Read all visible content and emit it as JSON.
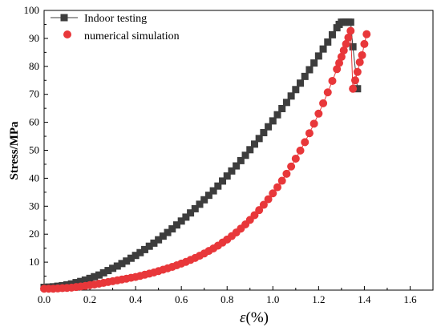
{
  "chart_data": {
    "type": "scatter",
    "xlabel_symbol": "ε",
    "xlabel_unit": "(%)",
    "ylabel": "Stress/MPa",
    "xlim": [
      0.0,
      1.7
    ],
    "ylim": [
      0,
      100
    ],
    "x_ticks": [
      "0.0",
      "0.2",
      "0.4",
      "0.6",
      "0.8",
      "1.0",
      "1.2",
      "1.4",
      "1.6"
    ],
    "y_ticks": [
      "10",
      "20",
      "30",
      "40",
      "50",
      "60",
      "70",
      "80",
      "90",
      "100"
    ],
    "grid": false,
    "legend_position": "top-left",
    "series": [
      {
        "name": "Indoor testing",
        "marker": "square",
        "color": "#3d3d3d",
        "x": [
          0.0,
          0.02,
          0.04,
          0.06,
          0.08,
          0.1,
          0.12,
          0.14,
          0.16,
          0.18,
          0.2,
          0.22,
          0.24,
          0.26,
          0.28,
          0.3,
          0.32,
          0.34,
          0.36,
          0.38,
          0.4,
          0.42,
          0.44,
          0.46,
          0.48,
          0.5,
          0.52,
          0.54,
          0.56,
          0.58,
          0.6,
          0.62,
          0.64,
          0.66,
          0.68,
          0.7,
          0.72,
          0.74,
          0.76,
          0.78,
          0.8,
          0.82,
          0.84,
          0.86,
          0.88,
          0.9,
          0.92,
          0.94,
          0.96,
          0.98,
          1.0,
          1.02,
          1.04,
          1.06,
          1.08,
          1.1,
          1.12,
          1.14,
          1.16,
          1.18,
          1.2,
          1.22,
          1.24,
          1.26,
          1.28,
          1.29,
          1.3,
          1.31,
          1.32,
          1.33,
          1.34,
          1.35,
          1.37
        ],
        "y": [
          1.0,
          1.1,
          1.2,
          1.4,
          1.6,
          1.9,
          2.2,
          2.7,
          3.1,
          3.6,
          4.2,
          4.8,
          5.4,
          6.2,
          7.0,
          7.8,
          8.6,
          9.5,
          10.4,
          11.4,
          12.4,
          13.4,
          14.5,
          15.7,
          16.8,
          18.0,
          19.3,
          20.6,
          21.9,
          23.3,
          24.7,
          26.1,
          27.6,
          29.1,
          30.7,
          32.3,
          33.9,
          35.5,
          37.2,
          39.0,
          40.8,
          42.6,
          44.4,
          46.3,
          48.2,
          50.2,
          52.2,
          54.2,
          56.3,
          58.4,
          60.5,
          62.7,
          64.9,
          67.1,
          69.4,
          71.7,
          74.0,
          76.4,
          78.8,
          81.2,
          83.7,
          86.2,
          88.7,
          91.3,
          93.8,
          95.0,
          95.8,
          95.8,
          95.8,
          95.8,
          95.8,
          87.0,
          72.0
        ]
      },
      {
        "name": "numerical simulation",
        "marker": "circle",
        "color": "#e8373a",
        "x": [
          0.0,
          0.02,
          0.04,
          0.06,
          0.08,
          0.1,
          0.12,
          0.14,
          0.16,
          0.18,
          0.2,
          0.22,
          0.24,
          0.26,
          0.28,
          0.3,
          0.32,
          0.34,
          0.36,
          0.38,
          0.4,
          0.42,
          0.44,
          0.46,
          0.48,
          0.5,
          0.52,
          0.54,
          0.56,
          0.58,
          0.6,
          0.62,
          0.64,
          0.66,
          0.68,
          0.7,
          0.72,
          0.74,
          0.76,
          0.78,
          0.8,
          0.82,
          0.84,
          0.86,
          0.88,
          0.9,
          0.92,
          0.94,
          0.96,
          0.98,
          1.0,
          1.02,
          1.04,
          1.06,
          1.08,
          1.1,
          1.12,
          1.14,
          1.16,
          1.18,
          1.2,
          1.22,
          1.24,
          1.26,
          1.28,
          1.29,
          1.3,
          1.31,
          1.32,
          1.33,
          1.34,
          1.35,
          1.36,
          1.37,
          1.38,
          1.39,
          1.4,
          1.41
        ],
        "y": [
          0.5,
          0.5,
          0.5,
          0.6,
          0.7,
          0.8,
          0.9,
          1.1,
          1.3,
          1.5,
          1.8,
          2.0,
          2.3,
          2.6,
          2.9,
          3.2,
          3.5,
          3.8,
          4.1,
          4.4,
          4.7,
          5.1,
          5.5,
          5.9,
          6.3,
          6.8,
          7.3,
          7.8,
          8.3,
          8.9,
          9.5,
          10.1,
          10.8,
          11.5,
          12.3,
          13.1,
          14.0,
          14.9,
          15.9,
          17.0,
          18.1,
          19.3,
          20.6,
          22.0,
          23.5,
          25.1,
          26.8,
          28.6,
          30.5,
          32.5,
          34.6,
          36.8,
          39.1,
          41.6,
          44.2,
          47.0,
          49.9,
          52.9,
          56.1,
          59.5,
          63.1,
          66.8,
          70.7,
          74.8,
          79.0,
          81.2,
          83.4,
          85.7,
          88.0,
          90.3,
          92.7,
          72.0,
          75.0,
          78.0,
          81.5,
          84.0,
          88.0,
          91.5
        ]
      }
    ]
  }
}
